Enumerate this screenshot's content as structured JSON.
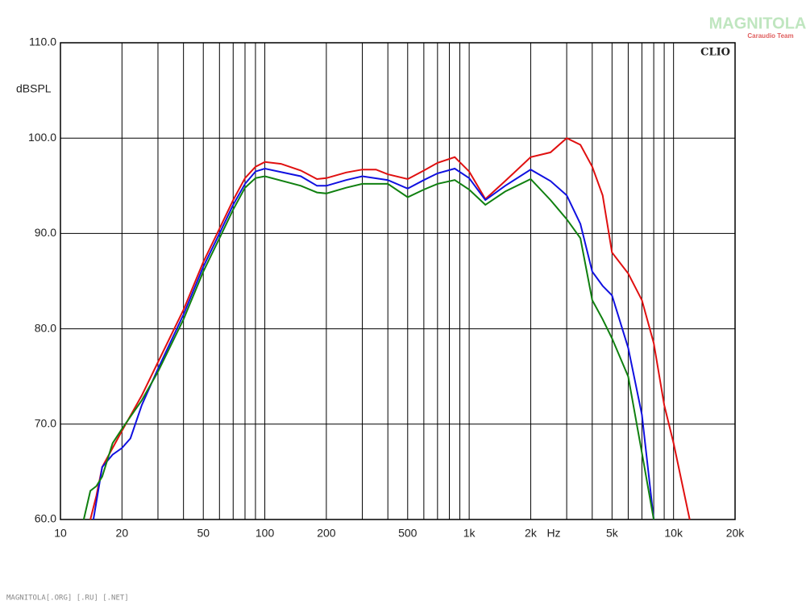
{
  "chart_data": {
    "type": "line",
    "y_label": "dBSPL",
    "x_unit": "Hz",
    "badge": "CLIO",
    "watermark": "MAGNITOLA",
    "watermark_sub": "Caraudio Team",
    "footer": "MAGNITOLA[.ORG] [.RU] [.NET]",
    "xscale": "log",
    "xlim": [
      10,
      20000
    ],
    "ylim": [
      60,
      110
    ],
    "grid": true,
    "xticks": [
      10,
      20,
      50,
      100,
      200,
      500,
      {
        "value": 1000,
        "label": "1k"
      },
      {
        "value": 2000,
        "label": "2k"
      },
      {
        "value": 5000,
        "label": "5k"
      },
      {
        "value": 10000,
        "label": "10k"
      },
      {
        "value": 20000,
        "label": "20k"
      }
    ],
    "xgrid": [
      30,
      40,
      60,
      70,
      80,
      90,
      300,
      400,
      600,
      700,
      800,
      900,
      3000,
      4000,
      6000,
      7000,
      8000,
      9000
    ],
    "yticks": [
      {
        "value": 60,
        "label": "60.0"
      },
      {
        "value": 70,
        "label": "70.0"
      },
      {
        "value": 80,
        "label": "80.0"
      },
      {
        "value": 90,
        "label": "90.0"
      },
      {
        "value": 100,
        "label": "100.0"
      },
      {
        "value": 110,
        "label": "110.0"
      }
    ],
    "series": [
      {
        "color": "#e01010",
        "x": [
          14,
          15,
          16,
          18,
          20,
          25,
          30,
          40,
          50,
          60,
          70,
          80,
          90,
          100,
          120,
          150,
          180,
          200,
          250,
          300,
          350,
          400,
          500,
          600,
          700,
          850,
          1000,
          1200,
          1500,
          2000,
          2500,
          3000,
          3500,
          4000,
          4500,
          5000,
          6000,
          7000,
          8000,
          9000,
          10000,
          12000
        ],
        "values": [
          60,
          62.5,
          65.5,
          67.5,
          69.3,
          73,
          76.5,
          82,
          87,
          90.5,
          93.5,
          95.8,
          97,
          97.5,
          97.3,
          96.6,
          95.7,
          95.8,
          96.4,
          96.7,
          96.7,
          96.2,
          95.7,
          96.6,
          97.4,
          98,
          96.5,
          93.6,
          95.5,
          98,
          98.5,
          100,
          99.3,
          97,
          94,
          88,
          85.8,
          83,
          78.5,
          72,
          68,
          60
        ]
      },
      {
        "color": "#1010e0",
        "x": [
          14.5,
          16,
          18,
          20,
          22,
          25,
          30,
          40,
          50,
          60,
          70,
          80,
          90,
          100,
          150,
          180,
          200,
          250,
          300,
          400,
          500,
          600,
          700,
          850,
          1000,
          1200,
          1500,
          2000,
          2500,
          3000,
          3500,
          4000,
          4500,
          5000,
          6000,
          7000,
          8000
        ],
        "values": [
          60,
          65.5,
          66.8,
          67.5,
          68.5,
          72,
          75.8,
          81.5,
          86.5,
          90,
          93,
          95.2,
          96.5,
          96.8,
          96,
          95,
          95,
          95.6,
          96,
          95.6,
          94.7,
          95.6,
          96.3,
          96.8,
          95.8,
          93.5,
          95,
          96.7,
          95.5,
          94,
          91,
          86,
          84.5,
          83.5,
          78,
          71,
          60
        ]
      },
      {
        "color": "#108010",
        "x": [
          13,
          14,
          15,
          16,
          18,
          20,
          25,
          30,
          40,
          50,
          60,
          70,
          80,
          90,
          100,
          150,
          180,
          200,
          250,
          300,
          400,
          500,
          600,
          700,
          850,
          1000,
          1200,
          1500,
          2000,
          2500,
          3000,
          3500,
          4000,
          4500,
          5000,
          6000,
          7000,
          8000
        ],
        "values": [
          60,
          63,
          63.5,
          64.5,
          68,
          69.5,
          72.5,
          75.5,
          81,
          86,
          89.5,
          92.5,
          94.8,
          95.8,
          96,
          95,
          94.3,
          94.2,
          94.8,
          95.2,
          95.2,
          93.8,
          94.6,
          95.2,
          95.6,
          94.6,
          93,
          94.4,
          95.7,
          93.5,
          91.5,
          89.5,
          83,
          81,
          79,
          75,
          67,
          60
        ]
      }
    ]
  }
}
